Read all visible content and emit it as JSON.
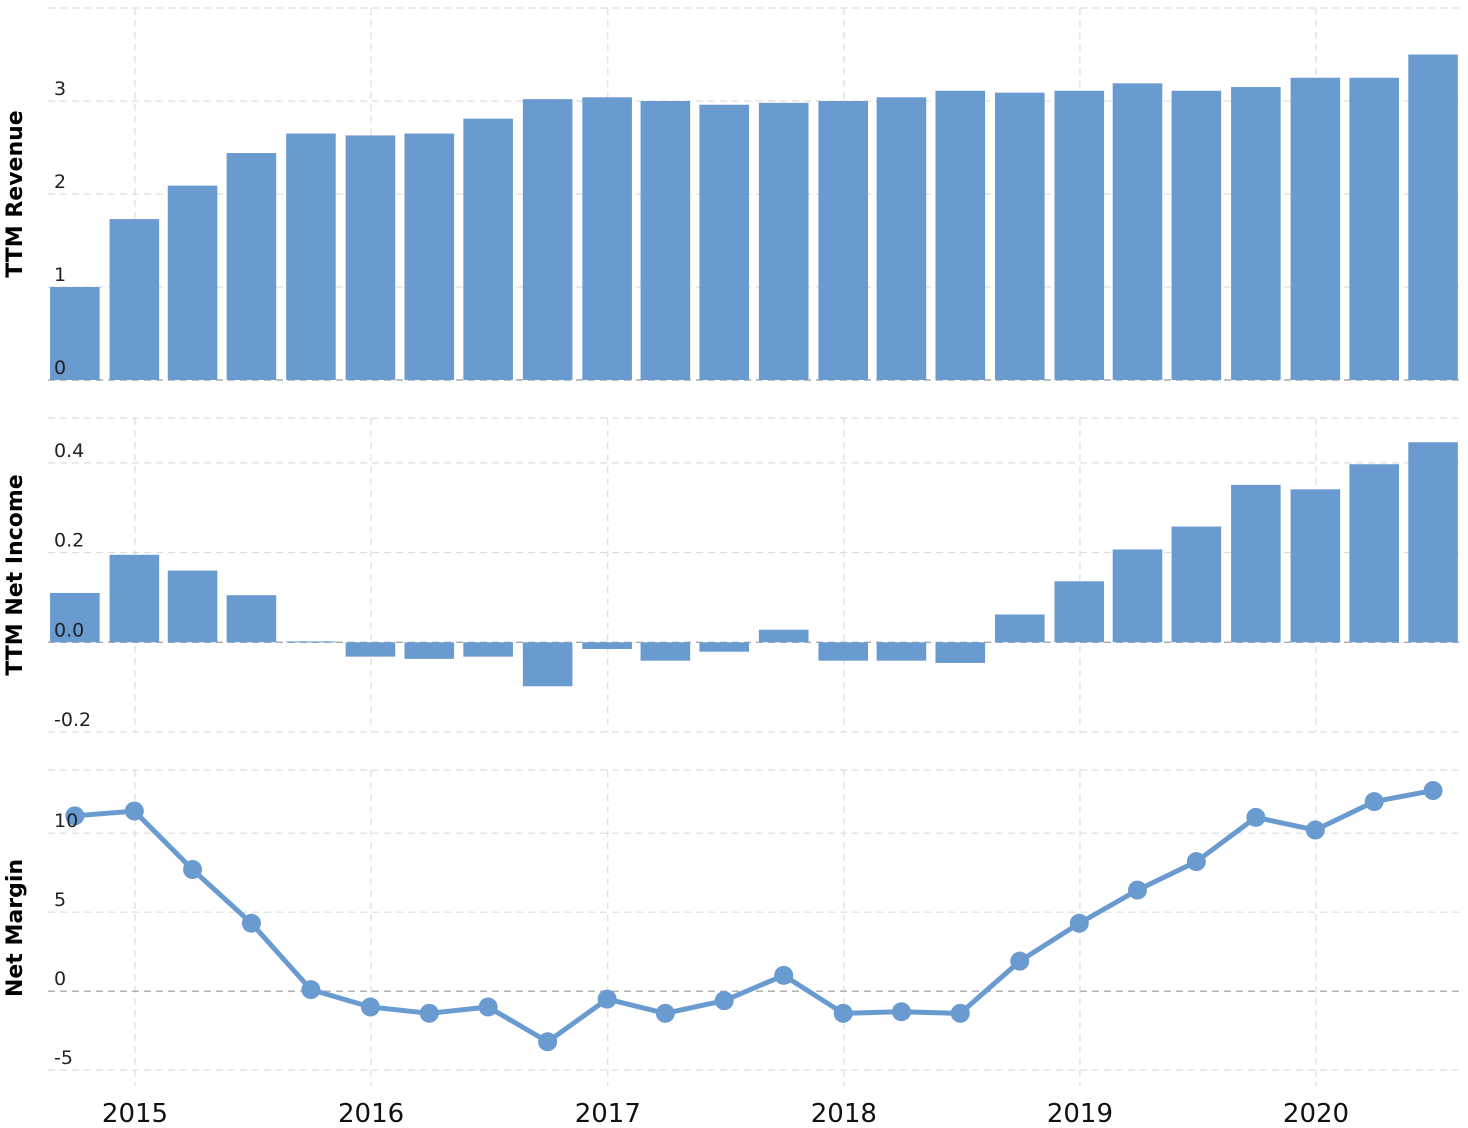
{
  "colors": {
    "series": "#6a9bd0",
    "grid": "#dddddd",
    "zero_line": "#aaaaaa"
  },
  "x_labels": [
    "2015",
    "2016",
    "2017",
    "2018",
    "2019",
    "2020"
  ],
  "chart_data": [
    {
      "type": "bar",
      "ylabel": "TTM Revenue",
      "ylim": [
        0,
        4
      ],
      "yticks": [
        "0",
        "1",
        "2",
        "3"
      ],
      "grid": true,
      "x": [
        "2014-09-30",
        "2014-12-31",
        "2015-03-31",
        "2015-06-30",
        "2015-09-30",
        "2015-12-31",
        "2016-03-31",
        "2016-06-30",
        "2016-09-30",
        "2016-12-31",
        "2017-03-31",
        "2017-06-30",
        "2017-09-30",
        "2017-12-31",
        "2018-03-31",
        "2018-06-30",
        "2018-09-30",
        "2018-12-31",
        "2019-03-31",
        "2019-06-30",
        "2019-09-30",
        "2019-12-31",
        "2020-03-31",
        "2020-06-30"
      ],
      "values": [
        1.0,
        1.73,
        2.09,
        2.44,
        2.65,
        2.63,
        2.65,
        2.81,
        3.02,
        3.04,
        3.0,
        2.96,
        2.98,
        3.0,
        3.04,
        3.11,
        3.09,
        3.11,
        3.19,
        3.11,
        3.15,
        3.25,
        3.25,
        3.5
      ]
    },
    {
      "type": "bar",
      "ylabel": "TTM Net Income",
      "ylim": [
        -0.2,
        0.5
      ],
      "yticks": [
        "-0.2",
        "0.0",
        "0.2",
        "0.4"
      ],
      "grid": true,
      "x": [
        "2014-09-30",
        "2014-12-31",
        "2015-03-31",
        "2015-06-30",
        "2015-09-30",
        "2015-12-31",
        "2016-03-31",
        "2016-06-30",
        "2016-09-30",
        "2016-12-31",
        "2017-03-31",
        "2017-06-30",
        "2017-09-30",
        "2017-12-31",
        "2018-03-31",
        "2018-06-30",
        "2018-09-30",
        "2018-12-31",
        "2019-03-31",
        "2019-06-30",
        "2019-09-30",
        "2019-12-31",
        "2020-03-31",
        "2020-06-30"
      ],
      "values": [
        0.11,
        0.195,
        0.16,
        0.105,
        0.002,
        -0.032,
        -0.037,
        -0.032,
        -0.098,
        -0.015,
        -0.041,
        -0.021,
        0.028,
        -0.041,
        -0.041,
        -0.046,
        0.062,
        0.136,
        0.207,
        0.258,
        0.351,
        0.341,
        0.397,
        0.446
      ]
    },
    {
      "type": "line",
      "ylabel": "Net Margin",
      "ylim": [
        -6,
        14
      ],
      "yticks": [
        "-5",
        "0",
        "5",
        "10"
      ],
      "grid": true,
      "x": [
        "2014-09-30",
        "2014-12-31",
        "2015-03-31",
        "2015-06-30",
        "2015-09-30",
        "2015-12-31",
        "2016-03-31",
        "2016-06-30",
        "2016-09-30",
        "2016-12-31",
        "2017-03-31",
        "2017-06-30",
        "2017-09-30",
        "2017-12-31",
        "2018-03-31",
        "2018-06-30",
        "2018-09-30",
        "2018-12-31",
        "2019-03-31",
        "2019-06-30",
        "2019-09-30",
        "2019-12-31",
        "2020-03-31",
        "2020-06-30"
      ],
      "values": [
        11.1,
        11.4,
        7.7,
        4.3,
        0.1,
        -1.0,
        -1.4,
        -1.0,
        -3.2,
        -0.5,
        -1.4,
        -0.6,
        1.0,
        -1.4,
        -1.3,
        -1.4,
        1.9,
        4.3,
        6.4,
        8.2,
        11.0,
        10.2,
        12.0,
        12.7
      ]
    }
  ]
}
